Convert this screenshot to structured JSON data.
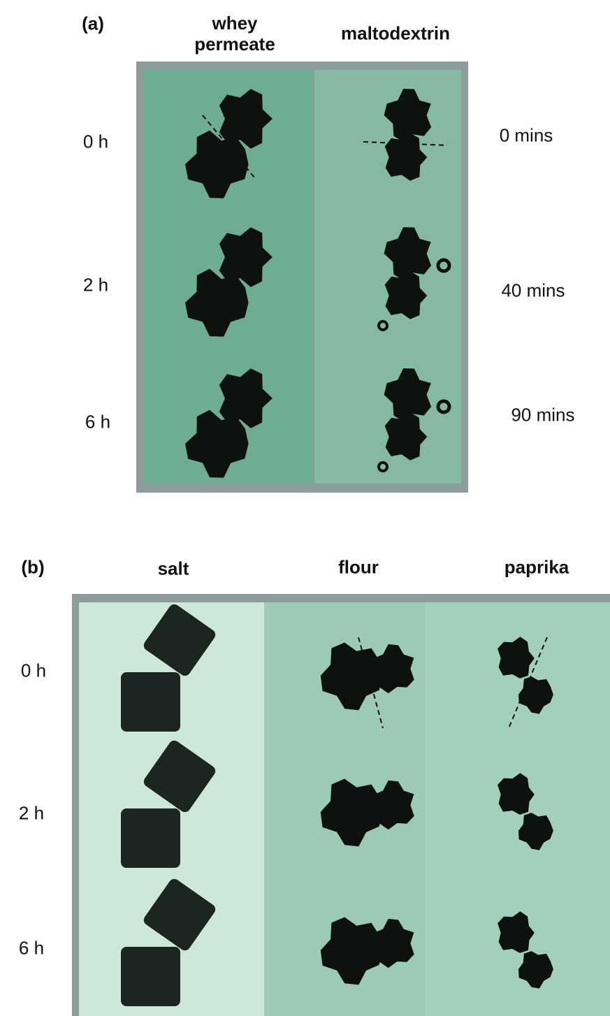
{
  "panel_a": {
    "label": "(a)",
    "columns": [
      "whey permeate",
      "maltodextrin"
    ],
    "rows": [
      "0 h",
      "2 h",
      "6 h"
    ],
    "times": [
      "0 mins",
      "40 mins",
      "90 mins"
    ]
  },
  "panel_b": {
    "label": "(b)",
    "columns": [
      "salt",
      "flour",
      "paprika"
    ],
    "rows": [
      "0 h",
      "2 h",
      "6 h"
    ]
  }
}
